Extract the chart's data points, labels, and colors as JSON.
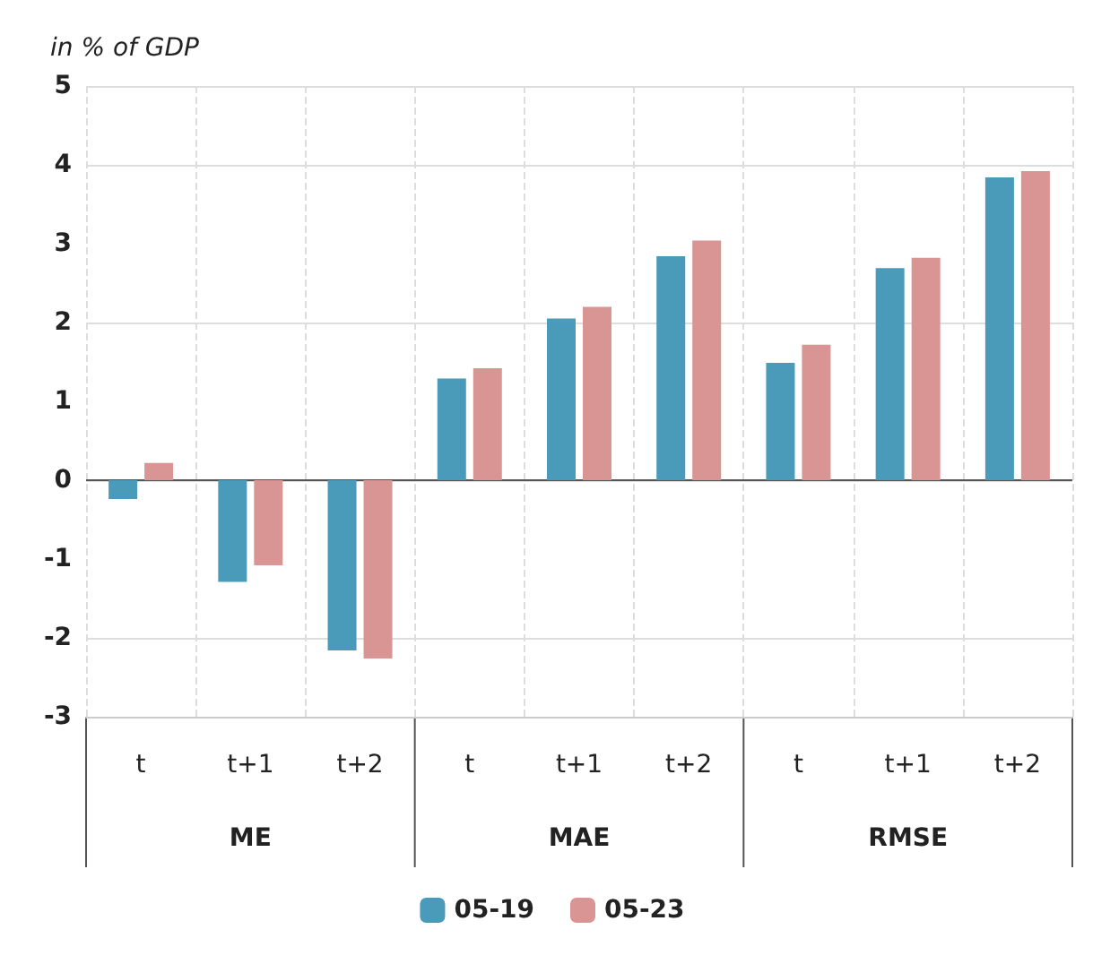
{
  "chart_data": {
    "type": "bar",
    "ylabel": "in % of GDP",
    "categories": [
      "t",
      "t+1",
      "t+2",
      "t",
      "t+1",
      "t+2",
      "t",
      "t+1",
      "t+2"
    ],
    "annotations": [
      "ME",
      "MAE",
      "RMSE"
    ],
    "series": [
      {
        "name": "05-19",
        "color": "#4a9aba",
        "values": [
          -0.24,
          -1.29,
          -2.16,
          1.29,
          2.05,
          2.84,
          1.49,
          2.69,
          3.84
        ]
      },
      {
        "name": "05-23",
        "color": "#d99494",
        "values": [
          0.22,
          -1.08,
          -2.26,
          1.42,
          2.2,
          3.04,
          1.72,
          2.82,
          3.92
        ]
      }
    ],
    "ylim": [
      -3,
      5
    ],
    "yticks": [
      -3,
      -2,
      -1,
      0,
      1,
      2,
      3,
      4,
      5
    ],
    "grid": true,
    "legend": "bottom"
  }
}
